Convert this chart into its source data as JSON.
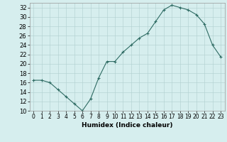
{
  "x": [
    0,
    1,
    2,
    3,
    4,
    5,
    6,
    7,
    8,
    9,
    10,
    11,
    12,
    13,
    14,
    15,
    16,
    17,
    18,
    19,
    20,
    21,
    22,
    23
  ],
  "y": [
    16.5,
    16.5,
    16.0,
    14.5,
    13.0,
    11.5,
    10.0,
    12.5,
    17.0,
    20.5,
    20.5,
    22.5,
    24.0,
    25.5,
    26.5,
    29.0,
    31.5,
    32.5,
    32.0,
    31.5,
    30.5,
    28.5,
    24.0,
    21.5
  ],
  "line_color": "#2e6b63",
  "marker": "+",
  "marker_size": 3.5,
  "bg_color": "#d6eeee",
  "grid_color": "#b0cfcf",
  "xlabel": "Humidex (Indice chaleur)",
  "ylim": [
    10,
    33
  ],
  "xlim": [
    -0.5,
    23.5
  ],
  "yticks": [
    10,
    12,
    14,
    16,
    18,
    20,
    22,
    24,
    26,
    28,
    30,
    32
  ],
  "xticks": [
    0,
    1,
    2,
    3,
    4,
    5,
    6,
    7,
    8,
    9,
    10,
    11,
    12,
    13,
    14,
    15,
    16,
    17,
    18,
    19,
    20,
    21,
    22,
    23
  ],
  "xlabel_fontsize": 6.5,
  "xtick_fontsize": 5.5,
  "ytick_fontsize": 6.0,
  "line_width": 0.8,
  "marker_edge_width": 0.8
}
